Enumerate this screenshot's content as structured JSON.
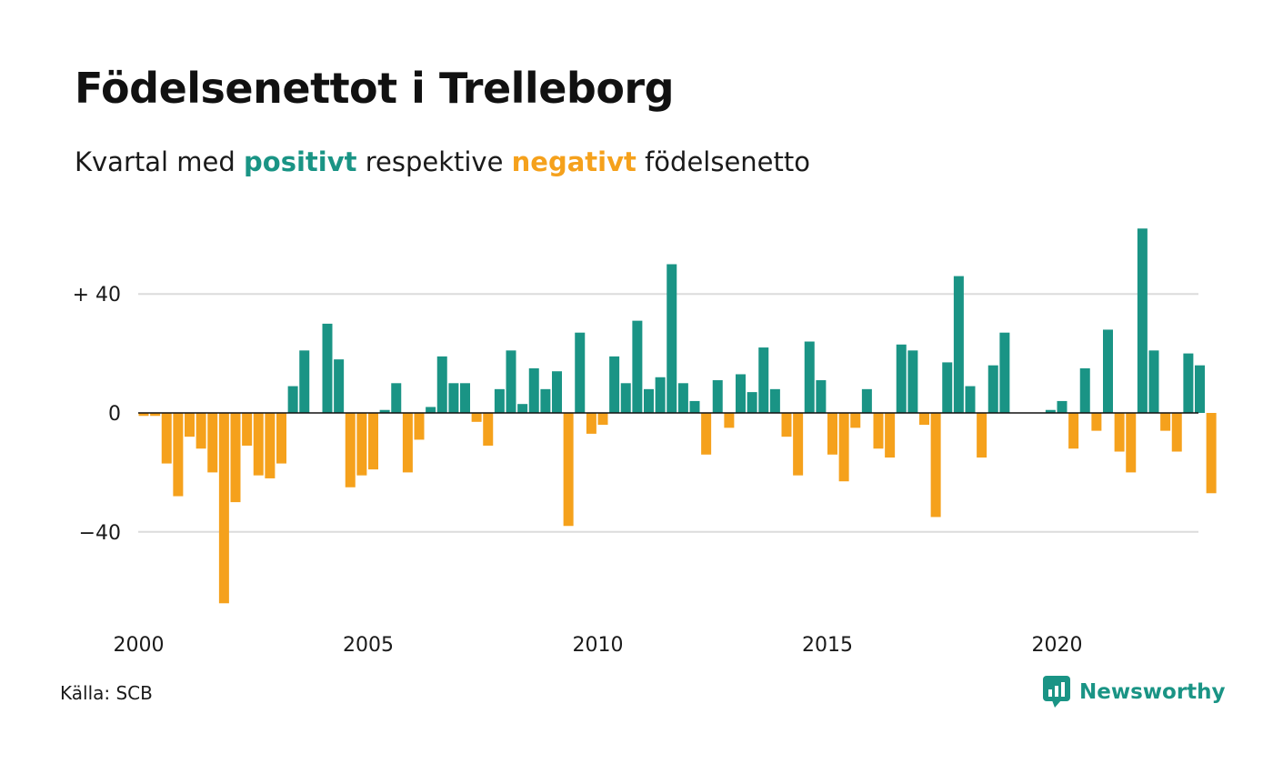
{
  "title": "Födelsenettot i Trelleborg",
  "subtitle": {
    "prefix": "Kvartal med ",
    "positive_word": "positivt",
    "middle": " respektive ",
    "negative_word": "negativt",
    "suffix": " födelsenetto"
  },
  "colors": {
    "positive": "#1a9485",
    "negative": "#f5a11c",
    "brand": "#1a9485"
  },
  "source": "Källa: SCB",
  "brand": {
    "name": "Newsworthy",
    "icon": "bar-chart-bubble-icon"
  },
  "chart_data": {
    "type": "bar",
    "x_start": 2000,
    "x_step": 0.25,
    "x_ticks": [
      {
        "value": 2000,
        "label": "2000"
      },
      {
        "value": 2005,
        "label": "2005"
      },
      {
        "value": 2010,
        "label": "2010"
      },
      {
        "value": 2015,
        "label": "2015"
      },
      {
        "value": 2020,
        "label": "2020"
      }
    ],
    "y_ticks": [
      {
        "value": 40,
        "label": "+ 40"
      },
      {
        "value": 0,
        "label": "0"
      },
      {
        "value": -40,
        "label": "−40"
      }
    ],
    "ylim": [
      -68,
      66
    ],
    "grid": true,
    "values": [
      -1,
      -1,
      -17,
      -28,
      -8,
      -12,
      -20,
      -64,
      -30,
      -11,
      -21,
      -22,
      -17,
      9,
      21,
      0,
      30,
      18,
      -25,
      -21,
      -19,
      1,
      10,
      -20,
      -9,
      2,
      19,
      10,
      10,
      -3,
      -11,
      8,
      21,
      3,
      15,
      8,
      14,
      -38,
      27,
      -7,
      -4,
      19,
      10,
      31,
      8,
      12,
      50,
      10,
      4,
      -14,
      11,
      -5,
      13,
      7,
      22,
      8,
      -8,
      -21,
      24,
      11,
      -14,
      -23,
      -5,
      8,
      -12,
      -15,
      23,
      21,
      -4,
      -35,
      17,
      46,
      9,
      -15,
      16,
      27,
      0,
      0,
      0,
      1,
      4,
      -12,
      15,
      -6,
      28,
      -13,
      -20,
      62,
      21,
      -6,
      -13,
      20,
      16,
      -27
    ]
  }
}
